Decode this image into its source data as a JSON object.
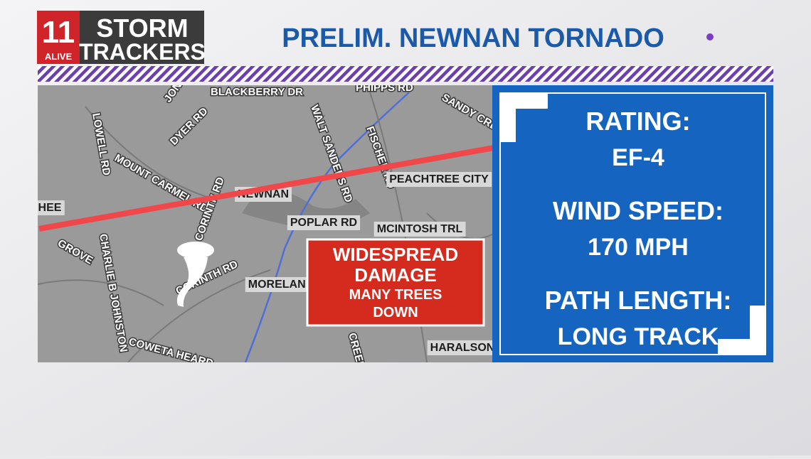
{
  "logo": {
    "number": "11",
    "station": "ALIVE",
    "line1": "STORM",
    "line2": "TRACKERS"
  },
  "header": {
    "title": "PRELIM. NEWNAN TORNADO"
  },
  "map": {
    "road_labels": [
      "BLACKBERRY DR",
      "PHIPPS RD",
      "SANDY CRE",
      "LOWELL RD",
      "JONES",
      "DYER RD",
      "MOUNT CARMEL RD",
      "WALT SANDERS RD",
      "FISCHER RD",
      "CORINTH RD",
      "CORINTH RD",
      "CHARLIE B JOHNSTON",
      "COWETA HEARD",
      "CREEK",
      "GROVE"
    ],
    "place_labels": [
      "PEACHTREE CITY",
      "NEWNAN",
      "HEE",
      "POPLAR RD",
      "MCINTOSH TRL",
      "MORELAND",
      "HARALSON"
    ]
  },
  "damage": {
    "lines": [
      "WIDESPREAD",
      "DAMAGE",
      "MANY TREES",
      "DOWN"
    ]
  },
  "info": {
    "items": [
      {
        "label": "RATING:",
        "value": "EF-4"
      },
      {
        "label": "WIND SPEED:",
        "value": "170 MPH"
      },
      {
        "label": "PATH LENGTH:",
        "value": "LONG TRACK"
      }
    ]
  }
}
